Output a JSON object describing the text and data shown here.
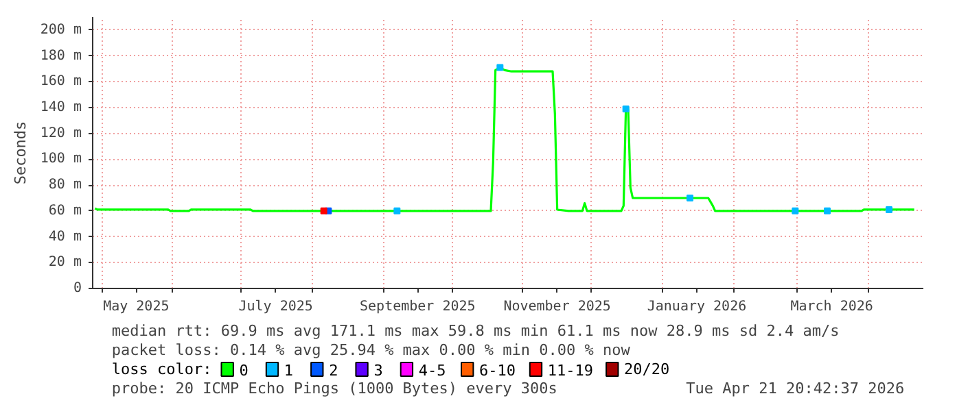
{
  "chart_data": {
    "type": "line",
    "ylabel": "Seconds",
    "legend_title": "loss color:",
    "legend": "bottom",
    "grid": true,
    "marker": "none",
    "line_style": "solid",
    "xlim": [
      "2025-04-27",
      "2026-04-25"
    ],
    "xticks": [
      {
        "value": "2025-05-01",
        "label": null
      },
      {
        "value": "2025-05-16",
        "label": "May 2025"
      },
      {
        "value": "2025-06-01",
        "label": null
      },
      {
        "value": "2025-07-01",
        "label": null
      },
      {
        "value": "2025-07-16",
        "label": "July 2025"
      },
      {
        "value": "2025-08-01",
        "label": null
      },
      {
        "value": "2025-09-01",
        "label": null
      },
      {
        "value": "2025-09-16",
        "label": "September 2025"
      },
      {
        "value": "2025-10-01",
        "label": null
      },
      {
        "value": "2025-11-01",
        "label": null
      },
      {
        "value": "2025-11-16",
        "label": "November 2025"
      },
      {
        "value": "2025-12-01",
        "label": null
      },
      {
        "value": "2026-01-01",
        "label": null
      },
      {
        "value": "2026-01-16",
        "label": "January 2026"
      },
      {
        "value": "2026-02-01",
        "label": null
      },
      {
        "value": "2026-03-01",
        "label": null
      },
      {
        "value": "2026-03-16",
        "label": "March 2026"
      },
      {
        "value": "2026-04-01",
        "label": null
      }
    ],
    "ylim": [
      0,
      210
    ],
    "yticks": [
      0,
      {
        "value": 20,
        "label": "20 m"
      },
      {
        "value": 40,
        "label": "40 m"
      },
      {
        "value": 60,
        "label": "60 m"
      },
      {
        "value": 80,
        "label": "80 m"
      },
      {
        "value": 100,
        "label": "100 m"
      },
      {
        "value": 120,
        "label": "120 m"
      },
      {
        "value": 140,
        "label": "140 m"
      },
      {
        "value": 160,
        "label": "160 m"
      },
      {
        "value": 180,
        "label": "180 m"
      },
      {
        "value": 200,
        "label": "200 m"
      }
    ],
    "series": [
      {
        "name": "0",
        "color": "#00ff00",
        "x": [
          "2025-04-28",
          "2025-04-29",
          "2025-05-30",
          "2025-05-31",
          "2025-06-08",
          "2025-06-09",
          "2025-07-05",
          "2025-07-06",
          "2025-10-18",
          "2025-10-19",
          "2025-10-20",
          "2025-10-22",
          "2025-10-24",
          "2025-10-27",
          "2025-11-14",
          "2025-11-15",
          "2025-11-16",
          "2025-11-21",
          "2025-11-27",
          "2025-11-28",
          "2025-11-29",
          "2025-12-14",
          "2025-12-15",
          "2025-12-16",
          "2025-12-17",
          "2025-12-18",
          "2025-12-19",
          "2026-01-21",
          "2026-01-22",
          "2026-01-23",
          "2026-01-24",
          "2026-03-29",
          "2026-03-30",
          "2026-04-21"
        ],
        "values": [
          62,
          61,
          61,
          60,
          60,
          61,
          61,
          60,
          60,
          98,
          169,
          171,
          169,
          168,
          168,
          135,
          61,
          60,
          60,
          66,
          60,
          60,
          64,
          139,
          139,
          78,
          70,
          70,
          67,
          64,
          60,
          60,
          61,
          61
        ]
      },
      {
        "name": "1",
        "color": "#00b8ff",
        "type": "scatter",
        "marker": "square",
        "x": [
          "2025-09-07",
          "2025-10-22",
          "2025-12-16",
          "2026-01-13",
          "2026-02-28",
          "2026-03-14",
          "2026-04-10"
        ],
        "values": [
          60,
          171,
          139,
          70,
          60,
          60,
          61
        ]
      },
      {
        "name": "2",
        "color": "#0059ff",
        "type": "scatter",
        "marker": "square",
        "x": [
          "2025-08-08"
        ],
        "values": [
          60
        ]
      },
      {
        "name": "3",
        "color": "#5e00ff",
        "type": "scatter",
        "marker": "square"
      },
      {
        "name": "4-5",
        "color": "#ff00ff",
        "type": "scatter",
        "marker": "square"
      },
      {
        "name": "6-10",
        "color": "#ff5e00",
        "type": "scatter",
        "marker": "square"
      },
      {
        "name": "11-19",
        "color": "#ff0000",
        "type": "scatter",
        "marker": "square",
        "x": [
          "2025-08-06"
        ],
        "values": [
          60
        ]
      },
      {
        "name": "20/20",
        "color": "#a10000",
        "type": "scatter",
        "marker": "square"
      }
    ],
    "annotations": [
      "median rtt:  69.9 ms avg  171.1 ms max  59.8 ms min  61.1 ms now  28.9 ms sd  2.4   am/s",
      "packet loss: 0.14 % avg  25.94 % max  0.00 % min  0.00 % now",
      "probe:       20 ICMP Echo Pings (1000 Bytes) every 300s",
      "Tue Apr 21 20:42:37 2026"
    ]
  }
}
